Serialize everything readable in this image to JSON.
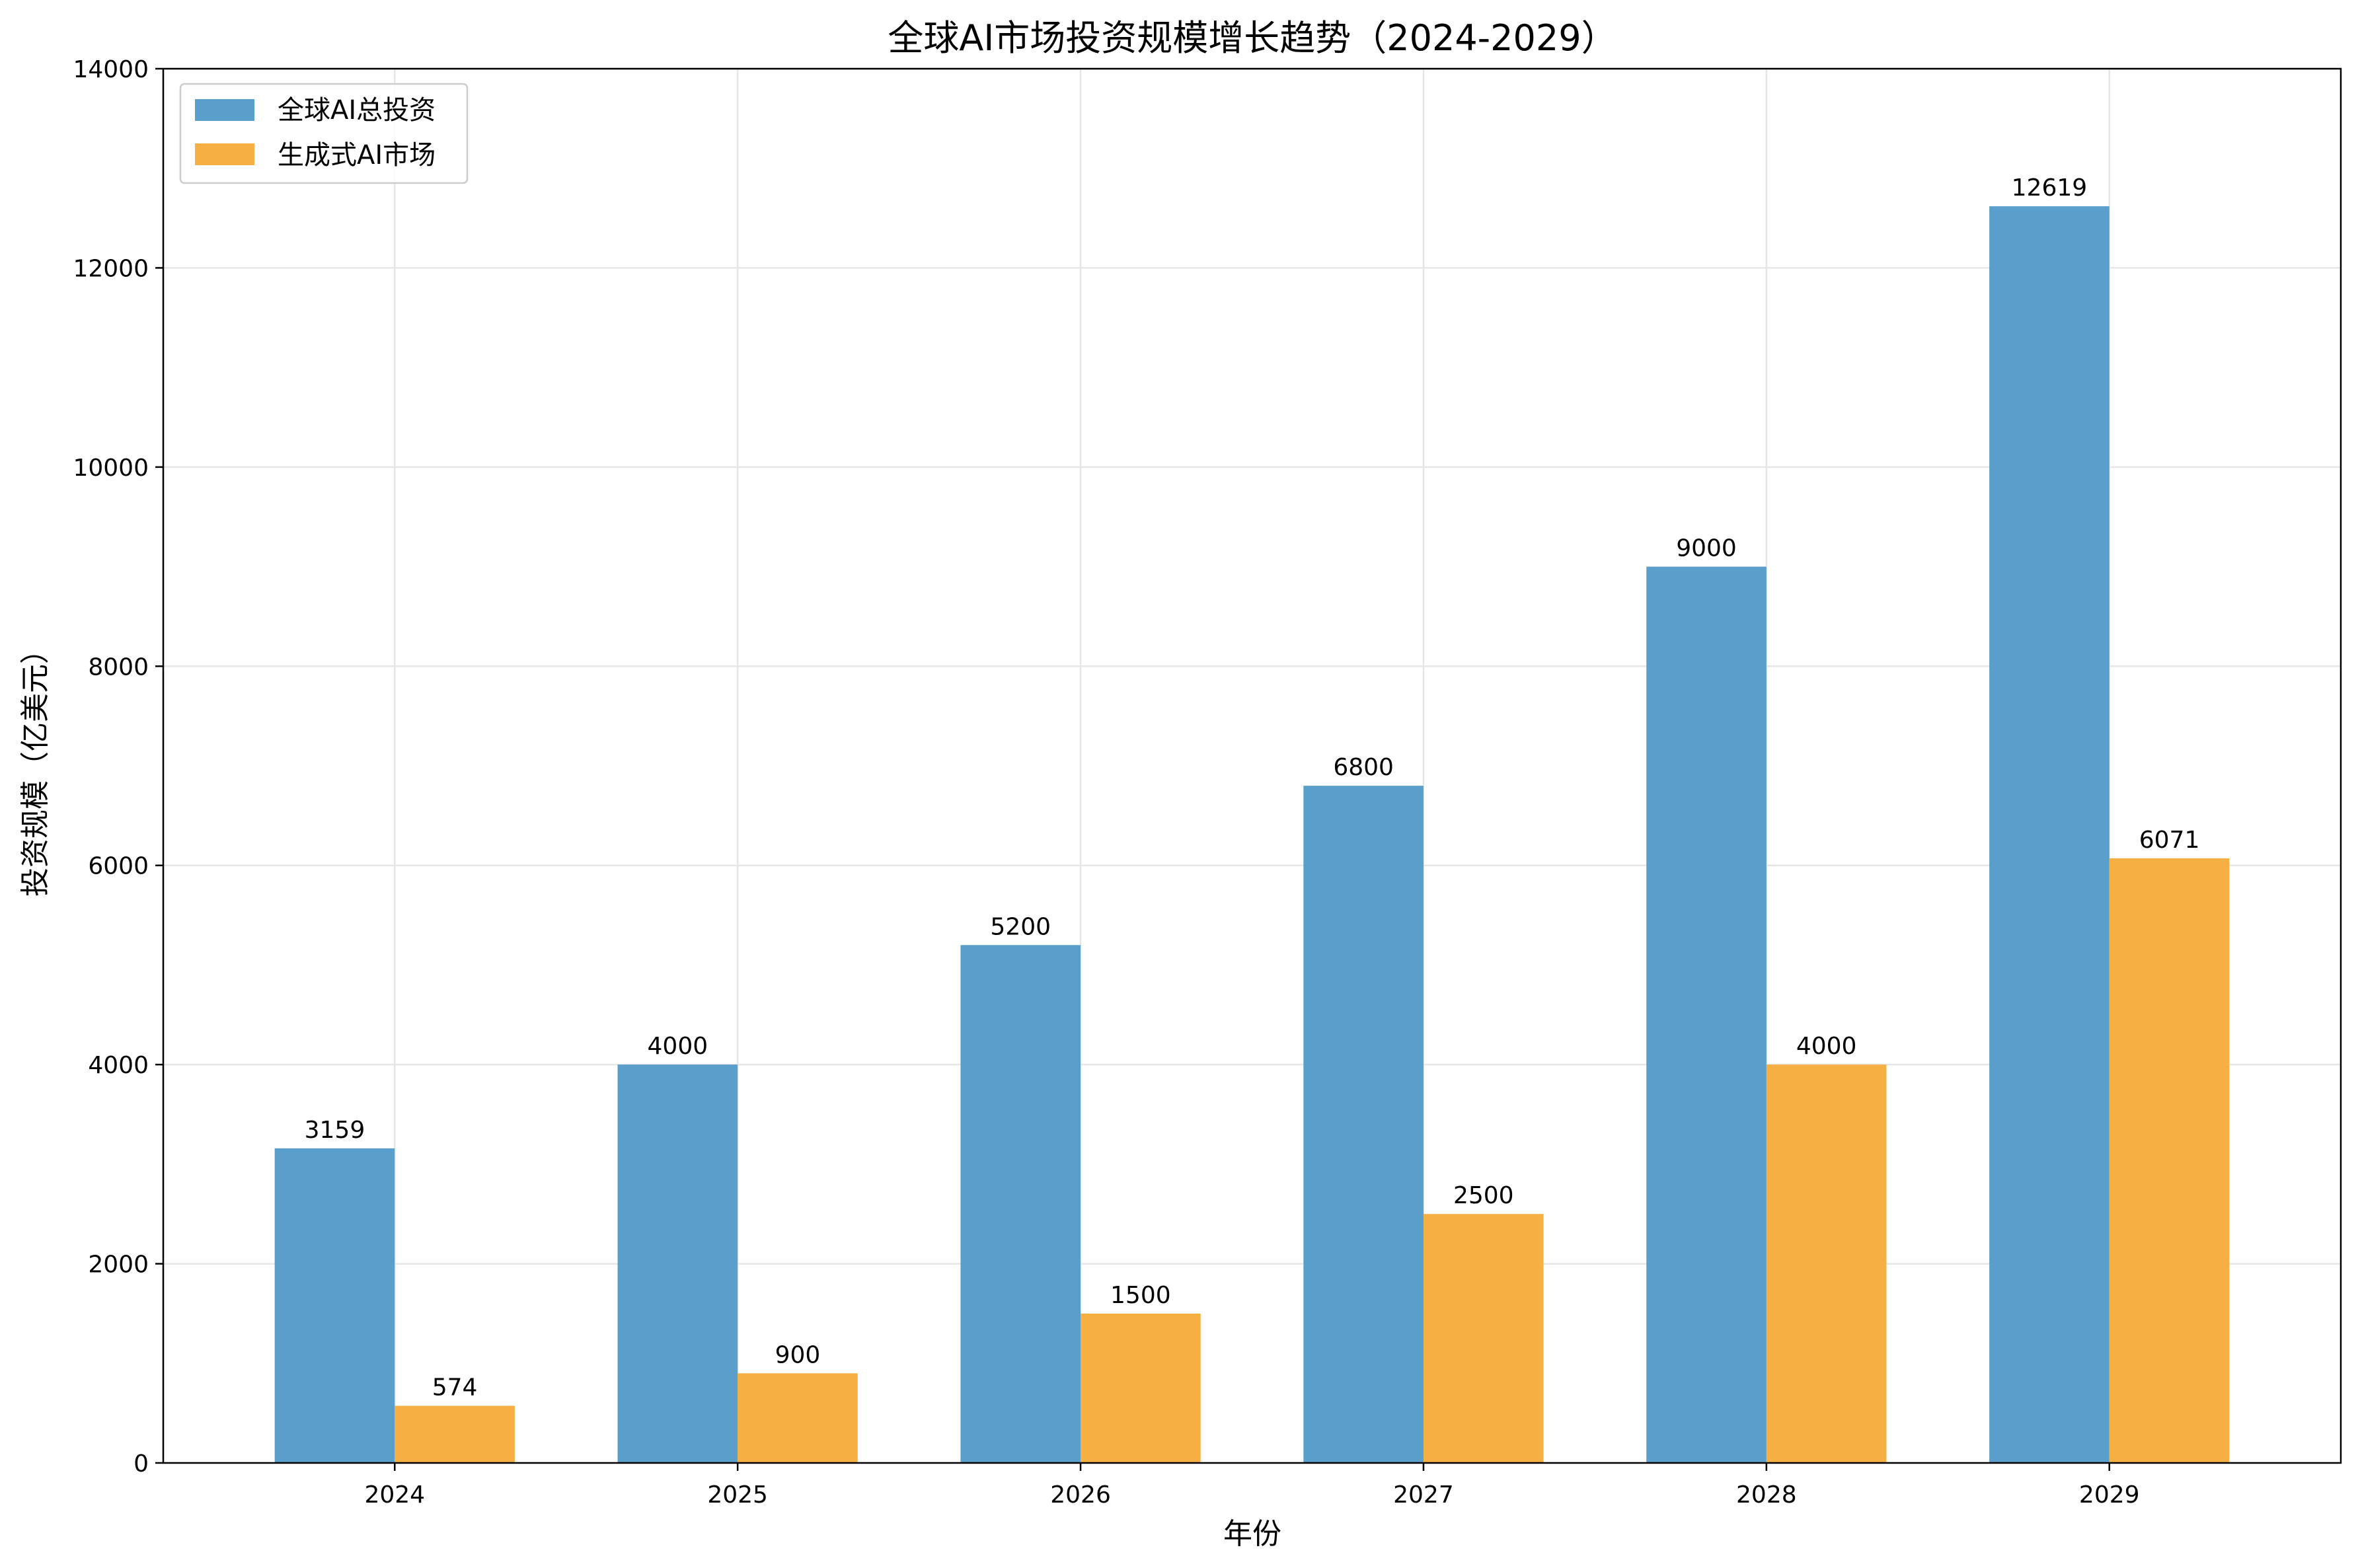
{
  "chart_data": {
    "type": "bar",
    "title": "全球AI市场投资规模增长趋势（2024-2029）",
    "xlabel": "年份",
    "ylabel": "投资规模（亿美元）",
    "categories": [
      "2024",
      "2025",
      "2026",
      "2027",
      "2028",
      "2029"
    ],
    "series": [
      {
        "name": "全球AI总投资",
        "color": "#5a9ecb",
        "values": [
          3159,
          4000,
          5200,
          6800,
          9000,
          12619
        ]
      },
      {
        "name": "生成式AI市场",
        "color": "#f5af42",
        "values": [
          574,
          900,
          1500,
          2500,
          4000,
          6071
        ]
      }
    ],
    "ylim": [
      0,
      14000
    ],
    "yticks": [
      0,
      2000,
      4000,
      6000,
      8000,
      10000,
      12000,
      14000
    ],
    "grid": true,
    "legend_position": "top-left"
  }
}
